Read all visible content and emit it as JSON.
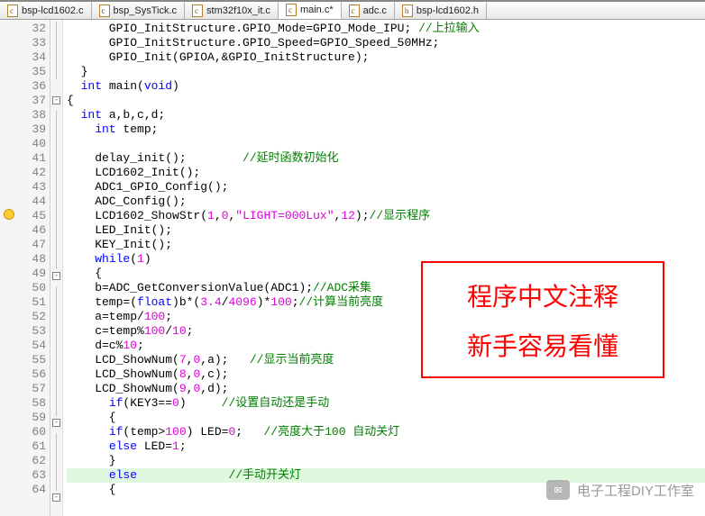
{
  "tabs": [
    {
      "label": "bsp-lcd1602.c",
      "icon": "c",
      "active": false
    },
    {
      "label": "bsp_SysTick.c",
      "icon": "c",
      "active": false
    },
    {
      "label": "stm32f10x_it.c",
      "icon": "c",
      "active": false
    },
    {
      "label": "main.c*",
      "icon": "c",
      "active": true
    },
    {
      "label": "adc.c",
      "icon": "c",
      "active": false
    },
    {
      "label": "bsp-lcd1602.h",
      "icon": "h",
      "active": false
    }
  ],
  "lines": [
    {
      "n": 32,
      "fold": "bar",
      "ind": 3,
      "seg": [
        [
          "",
          "GPIO_InitStructure.GPIO_Mode=GPIO_Mode_IPU; "
        ],
        [
          "cmt",
          "//上拉输入"
        ]
      ]
    },
    {
      "n": 33,
      "fold": "bar",
      "ind": 3,
      "seg": [
        [
          "",
          "GPIO_InitStructure.GPIO_Speed=GPIO_Speed_50MHz;"
        ]
      ]
    },
    {
      "n": 34,
      "fold": "bar",
      "ind": 3,
      "seg": [
        [
          "",
          "GPIO_Init(GPIOA,&GPIO_InitStructure);"
        ]
      ]
    },
    {
      "n": 35,
      "fold": "bar",
      "ind": 1,
      "seg": [
        [
          "",
          "}"
        ]
      ]
    },
    {
      "n": 36,
      "fold": "",
      "ind": 1,
      "seg": [
        [
          "kw",
          "int"
        ],
        [
          "",
          " main("
        ],
        [
          "kw",
          "void"
        ],
        [
          "",
          ")"
        ]
      ]
    },
    {
      "n": 37,
      "fold": "minus",
      "ind": 0,
      "seg": [
        [
          "",
          "{"
        ]
      ]
    },
    {
      "n": 38,
      "fold": "bar",
      "ind": 1,
      "seg": [
        [
          "kw",
          "int"
        ],
        [
          "",
          " a,b,c,d;"
        ]
      ]
    },
    {
      "n": 39,
      "fold": "bar",
      "ind": 2,
      "seg": [
        [
          "kw",
          "int"
        ],
        [
          "",
          " temp;"
        ]
      ]
    },
    {
      "n": 40,
      "fold": "bar",
      "ind": 1,
      "seg": [
        [
          "",
          ""
        ]
      ]
    },
    {
      "n": 41,
      "fold": "bar",
      "ind": 2,
      "seg": [
        [
          "",
          "delay_init();        "
        ],
        [
          "cmt",
          "//延时函数初始化"
        ]
      ]
    },
    {
      "n": 42,
      "fold": "bar",
      "ind": 2,
      "seg": [
        [
          "",
          "LCD1602_Init();"
        ]
      ]
    },
    {
      "n": 43,
      "fold": "bar",
      "ind": 2,
      "seg": [
        [
          "",
          "ADC1_GPIO_Config();"
        ]
      ]
    },
    {
      "n": 44,
      "fold": "bar",
      "ind": 2,
      "seg": [
        [
          "",
          "ADC_Config();"
        ]
      ]
    },
    {
      "n": 45,
      "fold": "bar",
      "ind": 2,
      "warn": true,
      "seg": [
        [
          "",
          "LCD1602_ShowStr("
        ],
        [
          "num",
          "1"
        ],
        [
          "",
          ","
        ],
        [
          "num",
          "0"
        ],
        [
          "",
          ","
        ],
        [
          "str",
          "\"LIGHT=000Lux\""
        ],
        [
          "",
          ","
        ],
        [
          "num",
          "12"
        ],
        [
          "",
          ");"
        ],
        [
          "cmt",
          "//显示程序"
        ]
      ]
    },
    {
      "n": 46,
      "fold": "bar",
      "ind": 2,
      "seg": [
        [
          "",
          "LED_Init();"
        ]
      ]
    },
    {
      "n": 47,
      "fold": "bar",
      "ind": 2,
      "seg": [
        [
          "",
          "KEY_Init();"
        ]
      ]
    },
    {
      "n": 48,
      "fold": "bar",
      "ind": 2,
      "seg": [
        [
          "kw",
          "while"
        ],
        [
          "",
          "("
        ],
        [
          "num",
          "1"
        ],
        [
          "",
          ")"
        ]
      ]
    },
    {
      "n": 49,
      "fold": "minus",
      "ind": 2,
      "seg": [
        [
          "",
          "{"
        ]
      ]
    },
    {
      "n": 50,
      "fold": "bar",
      "ind": 2,
      "seg": [
        [
          "",
          "b=ADC_GetConversionValue(ADC1);"
        ],
        [
          "cmt",
          "//ADC采集"
        ]
      ]
    },
    {
      "n": 51,
      "fold": "bar",
      "ind": 2,
      "seg": [
        [
          "",
          "temp=("
        ],
        [
          "kw",
          "float"
        ],
        [
          "",
          ")b*("
        ],
        [
          "num",
          "3.4"
        ],
        [
          "",
          "/"
        ],
        [
          "num",
          "4096"
        ],
        [
          "",
          ")*"
        ],
        [
          "num",
          "100"
        ],
        [
          "",
          ";"
        ],
        [
          "cmt",
          "//计算当前亮度"
        ]
      ]
    },
    {
      "n": 52,
      "fold": "bar",
      "ind": 2,
      "seg": [
        [
          "",
          "a=temp/"
        ],
        [
          "num",
          "100"
        ],
        [
          "",
          ";"
        ]
      ]
    },
    {
      "n": 53,
      "fold": "bar",
      "ind": 2,
      "seg": [
        [
          "",
          "c=temp%"
        ],
        [
          "num",
          "100"
        ],
        [
          "",
          "/"
        ],
        [
          "num",
          "10"
        ],
        [
          "",
          ";"
        ]
      ]
    },
    {
      "n": 54,
      "fold": "bar",
      "ind": 2,
      "seg": [
        [
          "",
          "d=c%"
        ],
        [
          "num",
          "10"
        ],
        [
          "",
          ";"
        ]
      ]
    },
    {
      "n": 55,
      "fold": "bar",
      "ind": 2,
      "seg": [
        [
          "",
          "LCD_ShowNum("
        ],
        [
          "num",
          "7"
        ],
        [
          "",
          ","
        ],
        [
          "num",
          "0"
        ],
        [
          "",
          ",a);   "
        ],
        [
          "cmt",
          "//显示当前亮度"
        ]
      ]
    },
    {
      "n": 56,
      "fold": "bar",
      "ind": 2,
      "seg": [
        [
          "",
          "LCD_ShowNum("
        ],
        [
          "num",
          "8"
        ],
        [
          "",
          ","
        ],
        [
          "num",
          "0"
        ],
        [
          "",
          ",c);"
        ]
      ]
    },
    {
      "n": 57,
      "fold": "bar",
      "ind": 2,
      "seg": [
        [
          "",
          "LCD_ShowNum("
        ],
        [
          "num",
          "9"
        ],
        [
          "",
          ","
        ],
        [
          "num",
          "0"
        ],
        [
          "",
          ",d);"
        ]
      ]
    },
    {
      "n": 58,
      "fold": "bar",
      "ind": 3,
      "seg": [
        [
          "kw",
          "if"
        ],
        [
          "",
          "(KEY3=="
        ],
        [
          "num",
          "0"
        ],
        [
          "",
          ")     "
        ],
        [
          "cmt",
          "//设置自动还是手动"
        ]
      ]
    },
    {
      "n": 59,
      "fold": "minus",
      "ind": 3,
      "seg": [
        [
          "",
          "{"
        ]
      ]
    },
    {
      "n": 60,
      "fold": "bar",
      "ind": 3,
      "seg": [
        [
          "kw",
          "if"
        ],
        [
          "",
          "(temp>"
        ],
        [
          "num",
          "100"
        ],
        [
          "",
          ") LED="
        ],
        [
          "num",
          "0"
        ],
        [
          "",
          ";   "
        ],
        [
          "cmt",
          "//亮度大于100 自动关灯"
        ]
      ]
    },
    {
      "n": 61,
      "fold": "bar",
      "ind": 3,
      "seg": [
        [
          "kw",
          "else"
        ],
        [
          "",
          " LED="
        ],
        [
          "num",
          "1"
        ],
        [
          "",
          ";"
        ]
      ]
    },
    {
      "n": 62,
      "fold": "bar",
      "ind": 3,
      "seg": [
        [
          "",
          "}"
        ]
      ]
    },
    {
      "n": 63,
      "fold": "bar",
      "ind": 3,
      "hl": true,
      "seg": [
        [
          "kw",
          "else"
        ],
        [
          "",
          "             "
        ],
        [
          "cmt",
          "//手动开关灯"
        ]
      ]
    },
    {
      "n": 64,
      "fold": "minus",
      "ind": 3,
      "seg": [
        [
          "",
          "{"
        ]
      ]
    }
  ],
  "indentUnit": "  ",
  "annotation": {
    "line1": "程序中文注释",
    "line2": "新手容易看懂"
  },
  "watermark": {
    "text": "电子工程DIY工作室"
  },
  "foldSymbols": {
    "minus": "-",
    "plus": "+"
  }
}
